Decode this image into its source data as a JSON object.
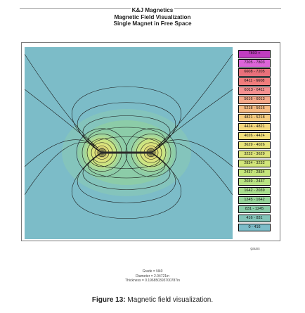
{
  "header": {
    "company": "K&J Magnetics",
    "title": "Magnetic Field Visualization",
    "subtitle": "Single Magnet in Free Space"
  },
  "legend": {
    "items": [
      {
        "label": "7803 <",
        "color": "#c03cc0"
      },
      {
        "label": "7205 - 7803",
        "color": "#dc64d8"
      },
      {
        "label": "6608 - 7205",
        "color": "#e8707a"
      },
      {
        "label": "6411 - 6608",
        "color": "#f07c7c"
      },
      {
        "label": "6013 - 6411",
        "color": "#f49090"
      },
      {
        "label": "5616 - 6013",
        "color": "#f6a98a"
      },
      {
        "label": "5218 - 5616",
        "color": "#f7bc84"
      },
      {
        "label": "4821 - 5218",
        "color": "#f5cc7e"
      },
      {
        "label": "4424 - 4821",
        "color": "#f3d77c"
      },
      {
        "label": "4026 - 4424",
        "color": "#f0de7c"
      },
      {
        "label": "3629 - 4026",
        "color": "#e8e27a"
      },
      {
        "label": "3232 - 3629",
        "color": "#dde47a"
      },
      {
        "label": "2834 - 3232",
        "color": "#d2e67a"
      },
      {
        "label": "2437 - 2834",
        "color": "#c6e67c"
      },
      {
        "label": "2039 - 2437",
        "color": "#b8e282"
      },
      {
        "label": "1642 - 2039",
        "color": "#a8dc8c"
      },
      {
        "label": "1245 - 1642",
        "color": "#96d49a"
      },
      {
        "label": "831 - 1245",
        "color": "#8acca8"
      },
      {
        "label": "416 - 831",
        "color": "#82c4b8"
      },
      {
        "label": "0 - 416",
        "color": "#7cbcc8"
      }
    ],
    "unit": "gauss"
  },
  "params": {
    "grade": "Grade = N40",
    "diameter": "Diameter = 2.04721in",
    "thickness": "Thickness = 0.196850393700787in"
  },
  "caption": {
    "label": "Figure 13:",
    "text": "Magnetic field visualization."
  },
  "colors": {
    "background_field": "#7cbcc8",
    "near_field": "#8fd0a8",
    "hot_field": "#e8e27a"
  }
}
